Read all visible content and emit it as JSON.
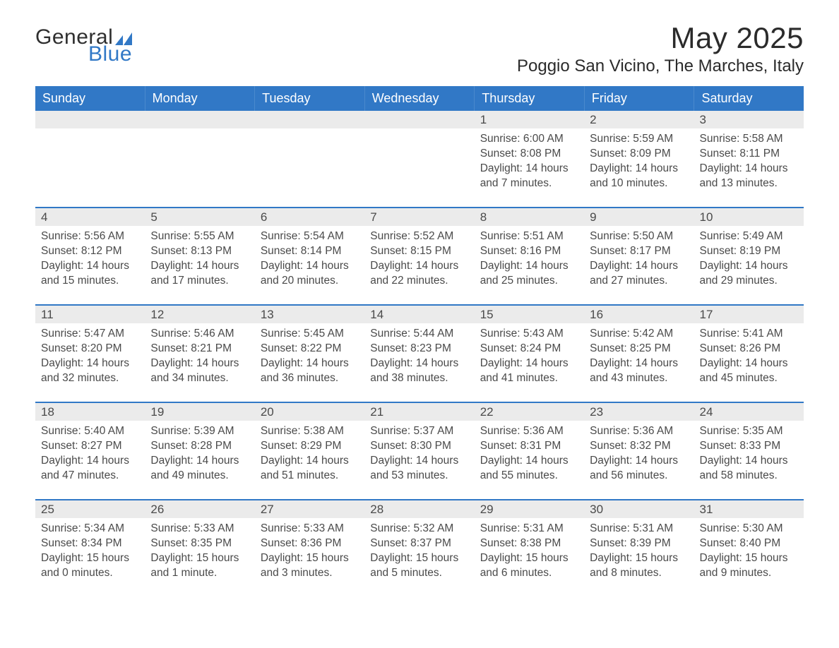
{
  "brand": {
    "word1": "General",
    "word2": "Blue",
    "icon_color": "#3178c6"
  },
  "title": {
    "month_year": "May 2025",
    "location": "Poggio San Vicino, The Marches, Italy"
  },
  "styling": {
    "header_bg": "#3178c6",
    "header_text_color": "#ffffff",
    "daynum_bg": "#ebebeb",
    "week_divider_color": "#3178c6",
    "body_text_color": "#4a4a4a",
    "background": "#ffffff",
    "header_fontsize_pt": 14,
    "title_fontsize_pt": 32,
    "subtitle_fontsize_pt": 18,
    "body_fontsize_pt": 12
  },
  "calendar": {
    "type": "table",
    "columns": [
      "Sunday",
      "Monday",
      "Tuesday",
      "Wednesday",
      "Thursday",
      "Friday",
      "Saturday"
    ],
    "labels": {
      "sunrise": "Sunrise:",
      "sunset": "Sunset:",
      "daylight": "Daylight:"
    },
    "weeks": [
      [
        {
          "blank": true
        },
        {
          "blank": true
        },
        {
          "blank": true
        },
        {
          "blank": true
        },
        {
          "day": "1",
          "sunrise": "6:00 AM",
          "sunset": "8:08 PM",
          "daylight": "14 hours and 7 minutes."
        },
        {
          "day": "2",
          "sunrise": "5:59 AM",
          "sunset": "8:09 PM",
          "daylight": "14 hours and 10 minutes."
        },
        {
          "day": "3",
          "sunrise": "5:58 AM",
          "sunset": "8:11 PM",
          "daylight": "14 hours and 13 minutes."
        }
      ],
      [
        {
          "day": "4",
          "sunrise": "5:56 AM",
          "sunset": "8:12 PM",
          "daylight": "14 hours and 15 minutes."
        },
        {
          "day": "5",
          "sunrise": "5:55 AM",
          "sunset": "8:13 PM",
          "daylight": "14 hours and 17 minutes."
        },
        {
          "day": "6",
          "sunrise": "5:54 AM",
          "sunset": "8:14 PM",
          "daylight": "14 hours and 20 minutes."
        },
        {
          "day": "7",
          "sunrise": "5:52 AM",
          "sunset": "8:15 PM",
          "daylight": "14 hours and 22 minutes."
        },
        {
          "day": "8",
          "sunrise": "5:51 AM",
          "sunset": "8:16 PM",
          "daylight": "14 hours and 25 minutes."
        },
        {
          "day": "9",
          "sunrise": "5:50 AM",
          "sunset": "8:17 PM",
          "daylight": "14 hours and 27 minutes."
        },
        {
          "day": "10",
          "sunrise": "5:49 AM",
          "sunset": "8:19 PM",
          "daylight": "14 hours and 29 minutes."
        }
      ],
      [
        {
          "day": "11",
          "sunrise": "5:47 AM",
          "sunset": "8:20 PM",
          "daylight": "14 hours and 32 minutes."
        },
        {
          "day": "12",
          "sunrise": "5:46 AM",
          "sunset": "8:21 PM",
          "daylight": "14 hours and 34 minutes."
        },
        {
          "day": "13",
          "sunrise": "5:45 AM",
          "sunset": "8:22 PM",
          "daylight": "14 hours and 36 minutes."
        },
        {
          "day": "14",
          "sunrise": "5:44 AM",
          "sunset": "8:23 PM",
          "daylight": "14 hours and 38 minutes."
        },
        {
          "day": "15",
          "sunrise": "5:43 AM",
          "sunset": "8:24 PM",
          "daylight": "14 hours and 41 minutes."
        },
        {
          "day": "16",
          "sunrise": "5:42 AM",
          "sunset": "8:25 PM",
          "daylight": "14 hours and 43 minutes."
        },
        {
          "day": "17",
          "sunrise": "5:41 AM",
          "sunset": "8:26 PM",
          "daylight": "14 hours and 45 minutes."
        }
      ],
      [
        {
          "day": "18",
          "sunrise": "5:40 AM",
          "sunset": "8:27 PM",
          "daylight": "14 hours and 47 minutes."
        },
        {
          "day": "19",
          "sunrise": "5:39 AM",
          "sunset": "8:28 PM",
          "daylight": "14 hours and 49 minutes."
        },
        {
          "day": "20",
          "sunrise": "5:38 AM",
          "sunset": "8:29 PM",
          "daylight": "14 hours and 51 minutes."
        },
        {
          "day": "21",
          "sunrise": "5:37 AM",
          "sunset": "8:30 PM",
          "daylight": "14 hours and 53 minutes."
        },
        {
          "day": "22",
          "sunrise": "5:36 AM",
          "sunset": "8:31 PM",
          "daylight": "14 hours and 55 minutes."
        },
        {
          "day": "23",
          "sunrise": "5:36 AM",
          "sunset": "8:32 PM",
          "daylight": "14 hours and 56 minutes."
        },
        {
          "day": "24",
          "sunrise": "5:35 AM",
          "sunset": "8:33 PM",
          "daylight": "14 hours and 58 minutes."
        }
      ],
      [
        {
          "day": "25",
          "sunrise": "5:34 AM",
          "sunset": "8:34 PM",
          "daylight": "15 hours and 0 minutes."
        },
        {
          "day": "26",
          "sunrise": "5:33 AM",
          "sunset": "8:35 PM",
          "daylight": "15 hours and 1 minute."
        },
        {
          "day": "27",
          "sunrise": "5:33 AM",
          "sunset": "8:36 PM",
          "daylight": "15 hours and 3 minutes."
        },
        {
          "day": "28",
          "sunrise": "5:32 AM",
          "sunset": "8:37 PM",
          "daylight": "15 hours and 5 minutes."
        },
        {
          "day": "29",
          "sunrise": "5:31 AM",
          "sunset": "8:38 PM",
          "daylight": "15 hours and 6 minutes."
        },
        {
          "day": "30",
          "sunrise": "5:31 AM",
          "sunset": "8:39 PM",
          "daylight": "15 hours and 8 minutes."
        },
        {
          "day": "31",
          "sunrise": "5:30 AM",
          "sunset": "8:40 PM",
          "daylight": "15 hours and 9 minutes."
        }
      ]
    ]
  }
}
